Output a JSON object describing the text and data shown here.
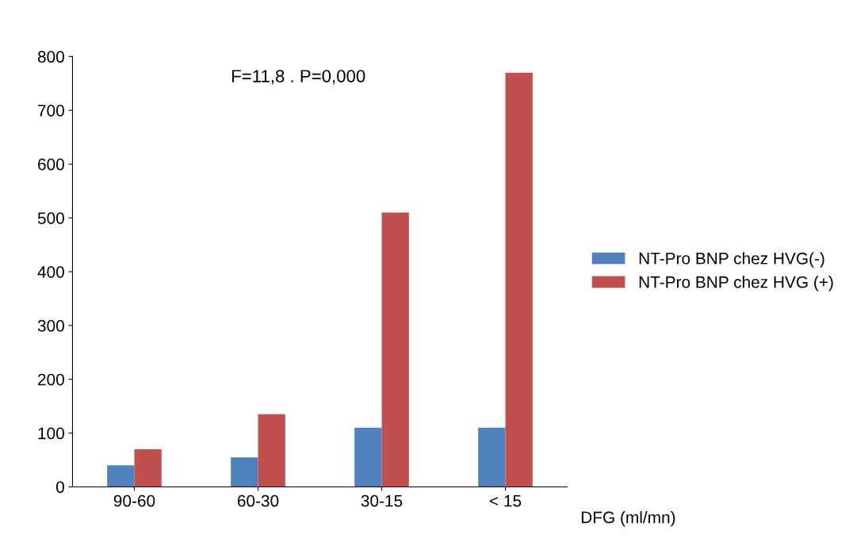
{
  "chart_data": {
    "type": "bar",
    "xlabel": "DFG (ml/mn)",
    "annotations": [
      "F=11,8 . P=0,000"
    ],
    "categories": [
      "90-60",
      "60-30",
      "30-15",
      "< 15"
    ],
    "series": [
      {
        "name": "NT-Pro BNP chez HVG(-)",
        "color": "#4f81bd",
        "values": [
          40,
          55,
          110,
          110
        ]
      },
      {
        "name": "NT-Pro BNP chez HVG (+)",
        "color": "#c0504d",
        "values": [
          70,
          135,
          510,
          770
        ]
      }
    ],
    "ylim": [
      0,
      800
    ],
    "yticks": [
      0,
      100,
      200,
      300,
      400,
      500,
      600,
      700,
      800
    ],
    "grid": false,
    "legend": "right"
  }
}
